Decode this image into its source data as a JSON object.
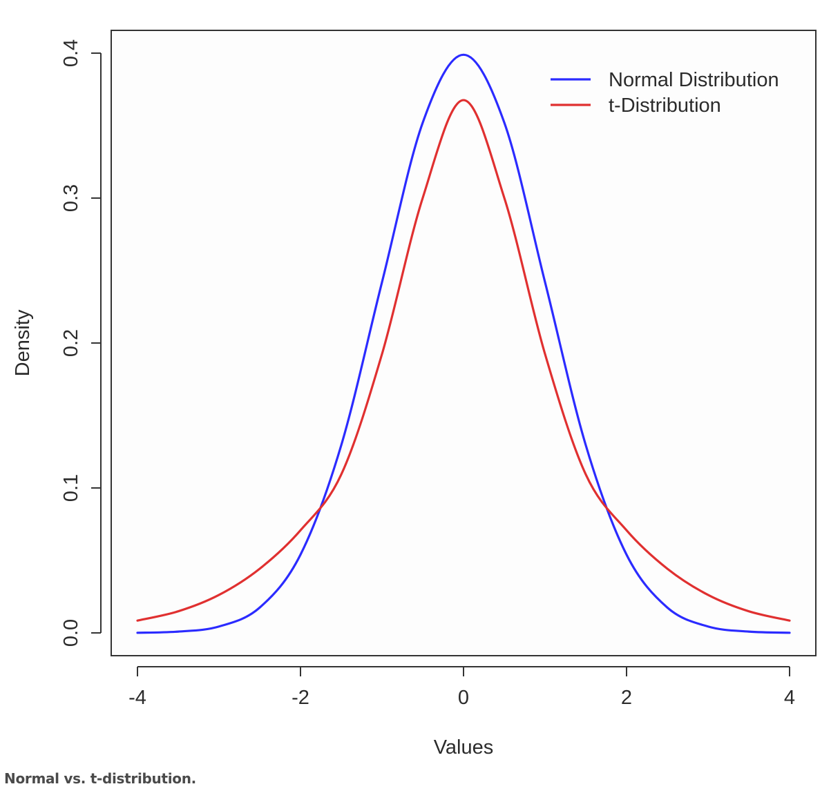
{
  "caption": "Normal vs. t-distribution.",
  "chart_data": {
    "type": "line",
    "title": "",
    "xlabel": "Values",
    "ylabel": "Density",
    "xlim": [
      -4,
      4
    ],
    "ylim": [
      0,
      0.4
    ],
    "x_ticks": [
      "-4",
      "-2",
      "0",
      "2",
      "4"
    ],
    "y_ticks": [
      "0.0",
      "0.1",
      "0.2",
      "0.3",
      "0.4"
    ],
    "grid": false,
    "legend_position": "top-right",
    "x": [
      -4,
      -3.5,
      -3,
      -2.5,
      -2,
      -1.5,
      -1,
      -0.5,
      0,
      0.5,
      1,
      1.5,
      2,
      2.5,
      3,
      3.5,
      4
    ],
    "series": [
      {
        "name": "Normal Distribution",
        "color": "#2b2bff",
        "values": [
          0.0001,
          0.0009,
          0.0044,
          0.0175,
          0.054,
          0.1295,
          0.242,
          0.3521,
          0.3989,
          0.3521,
          0.242,
          0.1295,
          0.054,
          0.0175,
          0.0044,
          0.0009,
          0.0001
        ]
      },
      {
        "name": "t-Distribution",
        "color": "#e03030",
        "values": [
          0.0085,
          0.0149,
          0.0262,
          0.0443,
          0.0708,
          0.1093,
          0.1924,
          0.3002,
          0.3676,
          0.3002,
          0.1924,
          0.1093,
          0.0708,
          0.0443,
          0.0262,
          0.0149,
          0.0085
        ]
      }
    ]
  }
}
